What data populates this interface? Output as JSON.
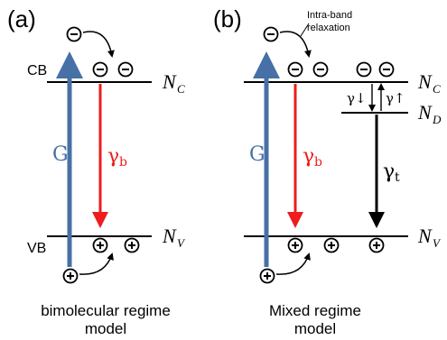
{
  "panel_a": {
    "panel_label": "(a)",
    "cb_label": "CB",
    "vb_label": "VB",
    "nc_label": "N",
    "nc_sub": "C",
    "nv_label": "N",
    "nv_sub": "V",
    "g_label": "G",
    "gamma_b_label": "γ",
    "gamma_b_sub": "b",
    "caption_line1": "bimolecular regime",
    "caption_line2": "model",
    "electron_symbol": "⊖",
    "hole_symbol": "⊕"
  },
  "panel_b": {
    "panel_label": "(b)",
    "annotation_line1": "Intra-band",
    "annotation_line2": "relaxation",
    "nc_label": "N",
    "nc_sub": "C",
    "nd_label": "N",
    "nd_sub": "D",
    "nv_label": "N",
    "nv_sub": "V",
    "g_label": "G",
    "gamma_b_label": "γ",
    "gamma_b_sub": "b",
    "gamma_t_label": "γ",
    "gamma_t_sub": "t",
    "gamma_down_label": "γ↓",
    "gamma_up_label": "γ↑",
    "caption_line1": "Mixed regime",
    "caption_line2": "model"
  },
  "colors": {
    "generation_arrow": "#4670a6",
    "bimolecular_arrow": "#ee1c1c",
    "trapping_arrow": "#000000",
    "level_line": "#000000"
  }
}
